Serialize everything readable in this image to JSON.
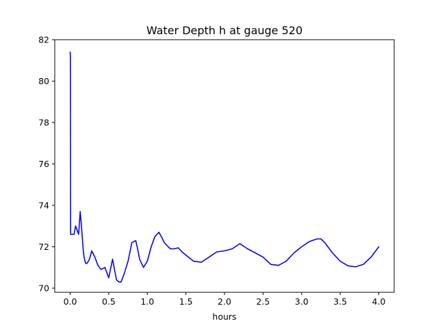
{
  "chart_data": {
    "type": "line",
    "title": "Water Depth h at gauge 520",
    "xlabel": "hours",
    "ylabel": "",
    "xlim": [
      -0.2,
      4.2
    ],
    "ylim": [
      69.8,
      82
    ],
    "x_ticks": [
      0.0,
      0.5,
      1.0,
      1.5,
      2.0,
      2.5,
      3.0,
      3.5,
      4.0
    ],
    "x_tick_labels": [
      "0.0",
      "0.5",
      "1.0",
      "1.5",
      "2.0",
      "2.5",
      "3.0",
      "3.5",
      "4.0"
    ],
    "y_ticks": [
      70,
      72,
      74,
      76,
      78,
      80,
      82
    ],
    "y_tick_labels": [
      "70",
      "72",
      "74",
      "76",
      "78",
      "80",
      "82"
    ],
    "grid": false,
    "legend": "none",
    "series": [
      {
        "color": "#0000ff",
        "x": [
          0.0,
          0.003,
          0.006,
          0.01,
          0.02,
          0.05,
          0.07,
          0.09,
          0.11,
          0.13,
          0.15,
          0.17,
          0.185,
          0.2,
          0.22,
          0.25,
          0.28,
          0.32,
          0.36,
          0.4,
          0.45,
          0.5,
          0.55,
          0.6,
          0.63,
          0.66,
          0.7,
          0.75,
          0.8,
          0.85,
          0.88,
          0.9,
          0.95,
          1.0,
          1.05,
          1.1,
          1.15,
          1.18,
          1.22,
          1.27,
          1.3,
          1.35,
          1.4,
          1.45,
          1.5,
          1.6,
          1.7,
          1.8,
          1.9,
          2.0,
          2.1,
          2.2,
          2.3,
          2.4,
          2.5,
          2.6,
          2.7,
          2.8,
          2.9,
          3.0,
          3.1,
          3.2,
          3.25,
          3.3,
          3.4,
          3.5,
          3.6,
          3.7,
          3.8,
          3.9,
          4.0
        ],
        "y": [
          81.4,
          81.2,
          72.6,
          72.6,
          72.6,
          72.6,
          73.0,
          72.8,
          72.6,
          73.7,
          72.8,
          71.8,
          71.4,
          71.2,
          71.2,
          71.4,
          71.8,
          71.5,
          71.1,
          70.9,
          71.0,
          70.5,
          71.4,
          70.4,
          70.3,
          70.3,
          70.7,
          71.3,
          72.2,
          72.3,
          71.8,
          71.4,
          71.0,
          71.3,
          72.0,
          72.5,
          72.7,
          72.5,
          72.2,
          72.0,
          71.9,
          71.9,
          71.95,
          71.75,
          71.6,
          71.3,
          71.25,
          71.5,
          71.75,
          71.8,
          71.9,
          72.15,
          71.9,
          71.7,
          71.5,
          71.15,
          71.1,
          71.3,
          71.7,
          72.0,
          72.25,
          72.38,
          72.38,
          72.2,
          71.7,
          71.3,
          71.08,
          71.03,
          71.15,
          71.5,
          72.0
        ]
      }
    ]
  }
}
